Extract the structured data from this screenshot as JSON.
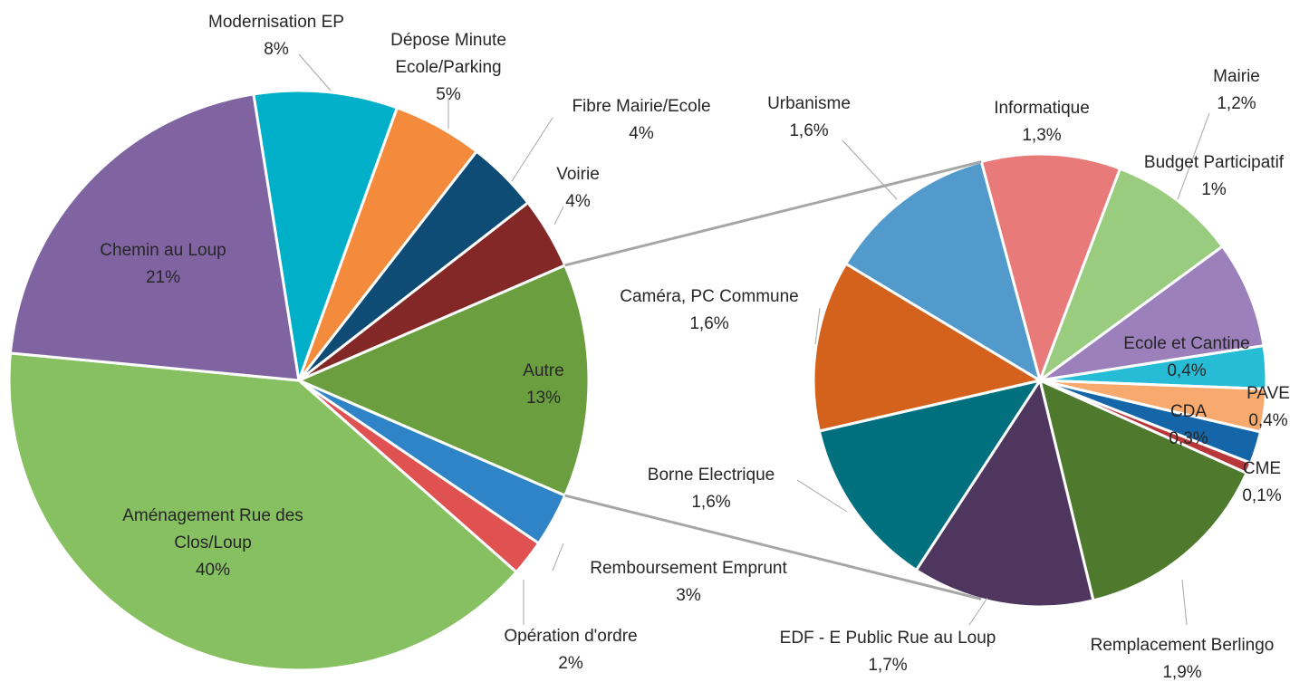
{
  "chart_data": [
    {
      "type": "pie",
      "categories": [
        "Autre",
        "Remboursement Emprunt",
        "Opération d'ordre",
        "Aménagement Rue des Clos/Loup",
        "Chemin au Loup",
        "Modernisation EP",
        "Dépose Minute Ecole/Parking",
        "Fibre Mairie/Ecole",
        "Voirie"
      ],
      "values": [
        13,
        3,
        2,
        40,
        21,
        8,
        5,
        4,
        4
      ],
      "value_labels": [
        "13%",
        "3%",
        "2%",
        "40%",
        "21%",
        "8%",
        "5%",
        "4%",
        "4%"
      ],
      "colors": [
        "#6a9e3f",
        "#2e84c6",
        "#e05252",
        "#86c060",
        "#8064a2",
        "#00b0c8",
        "#f48b3c",
        "#0f4c75",
        "#842827"
      ]
    },
    {
      "type": "pie",
      "categories": [
        "Informatique",
        "Mairie",
        "Budget Participatif",
        "Ecole et Cantine",
        "PAVE",
        "CDA",
        "CME",
        "Remplacement Berlingo",
        "EDF - E Public Rue au Loup",
        "Borne Electrique",
        "Caméra, PC Commune",
        "Urbanisme"
      ],
      "values": [
        1.3,
        1.2,
        1,
        0.4,
        0.4,
        0.3,
        0.1,
        1.9,
        1.7,
        1.6,
        1.6,
        1.6
      ],
      "value_labels": [
        "1,3%",
        "1,2%",
        "1%",
        "0,4%",
        "0,4%",
        "0,3%",
        "0,1%",
        "1,9%",
        "1,7%",
        "1,6%",
        "1,6%",
        "1,6%"
      ],
      "colors": [
        "#e87a79",
        "#99cc7f",
        "#9b80bb",
        "#27bcd6",
        "#f7a96e",
        "#1566a8",
        "#b8373a",
        "#4f7a2e",
        "#4e365e",
        "#00707f",
        "#d4621c",
        "#5299cc"
      ]
    }
  ]
}
